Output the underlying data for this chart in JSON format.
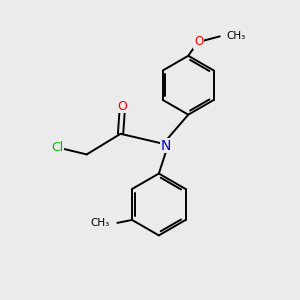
{
  "background_color": "#ebebeb",
  "bond_color": "#000000",
  "atom_colors": {
    "O": "#ff0000",
    "N": "#0000cc",
    "Cl": "#00bb00"
  },
  "figsize": [
    3.0,
    3.0
  ],
  "dpi": 100,
  "lw": 1.4,
  "font_size": 8.5
}
